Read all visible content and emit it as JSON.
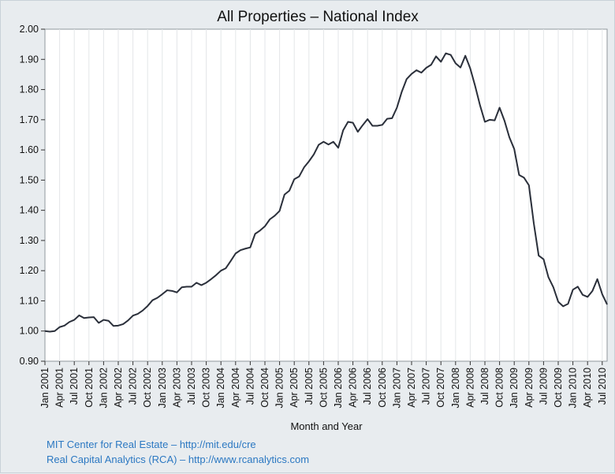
{
  "chart_data": {
    "type": "line",
    "title": "All Properties – National Index",
    "xlabel": "Month and Year",
    "ylabel": "",
    "ylim": [
      0.9,
      2.0
    ],
    "yticks": [
      "0.90",
      "1.00",
      "1.10",
      "1.20",
      "1.30",
      "1.40",
      "1.50",
      "1.60",
      "1.70",
      "1.80",
      "1.90",
      "2.00"
    ],
    "xticks": [
      "Jan 2001",
      "Apr 2001",
      "Jul 2001",
      "Oct 2001",
      "Jan 2002",
      "Apr 2002",
      "Jul 2002",
      "Oct 2002",
      "Jan 2003",
      "Apr 2003",
      "Jul 2003",
      "Oct 2003",
      "Jan 2004",
      "Apr 2004",
      "Jul 2004",
      "Oct 2004",
      "Jan 2005",
      "Apr 2005",
      "Jul 2005",
      "Oct 2005",
      "Jan 2006",
      "Apr 2006",
      "Jul 2006",
      "Oct 2006",
      "Jan 2007",
      "Apr 2007",
      "Jul 2007",
      "Oct 2007",
      "Jan 2008",
      "Apr 2008",
      "Jul 2008",
      "Oct 2008",
      "Jan 2009",
      "Apr 2009",
      "Jul 2009",
      "Oct 2009",
      "Jan 2010",
      "Apr 2010",
      "Jul 2010"
    ],
    "grid": "vertical",
    "line_color": "#2a2f3a",
    "series": [
      {
        "values": [
          1.0,
          0.998,
          1.0,
          1.013,
          1.018,
          1.03,
          1.037,
          1.052,
          1.043,
          1.045,
          1.046,
          1.027,
          1.037,
          1.034,
          1.017,
          1.018,
          1.023,
          1.035,
          1.051,
          1.057,
          1.068,
          1.083,
          1.102,
          1.11,
          1.122,
          1.135,
          1.133,
          1.128,
          1.145,
          1.147,
          1.147,
          1.16,
          1.152,
          1.16,
          1.172,
          1.185,
          1.2,
          1.208,
          1.232,
          1.257,
          1.268,
          1.273,
          1.277,
          1.322,
          1.333,
          1.347,
          1.37,
          1.382,
          1.398,
          1.452,
          1.465,
          1.503,
          1.512,
          1.542,
          1.562,
          1.585,
          1.617,
          1.627,
          1.618,
          1.627,
          1.607,
          1.665,
          1.693,
          1.69,
          1.66,
          1.682,
          1.702,
          1.68,
          1.68,
          1.683,
          1.703,
          1.705,
          1.74,
          1.793,
          1.835,
          1.852,
          1.864,
          1.856,
          1.872,
          1.882,
          1.91,
          1.892,
          1.92,
          1.915,
          1.887,
          1.873,
          1.912,
          1.87,
          1.812,
          1.748,
          1.693,
          1.7,
          1.698,
          1.74,
          1.697,
          1.642,
          1.603,
          1.517,
          1.508,
          1.483,
          1.357,
          1.25,
          1.238,
          1.178,
          1.145,
          1.097,
          1.082,
          1.09,
          1.137,
          1.147,
          1.12,
          1.113,
          1.133,
          1.172,
          1.122,
          1.088
        ]
      }
    ]
  },
  "credits": [
    "MIT Center for Real Estate – http://mit.edu/cre",
    "Real Capital Analytics (RCA) – http://www.rcanalytics.com"
  ]
}
